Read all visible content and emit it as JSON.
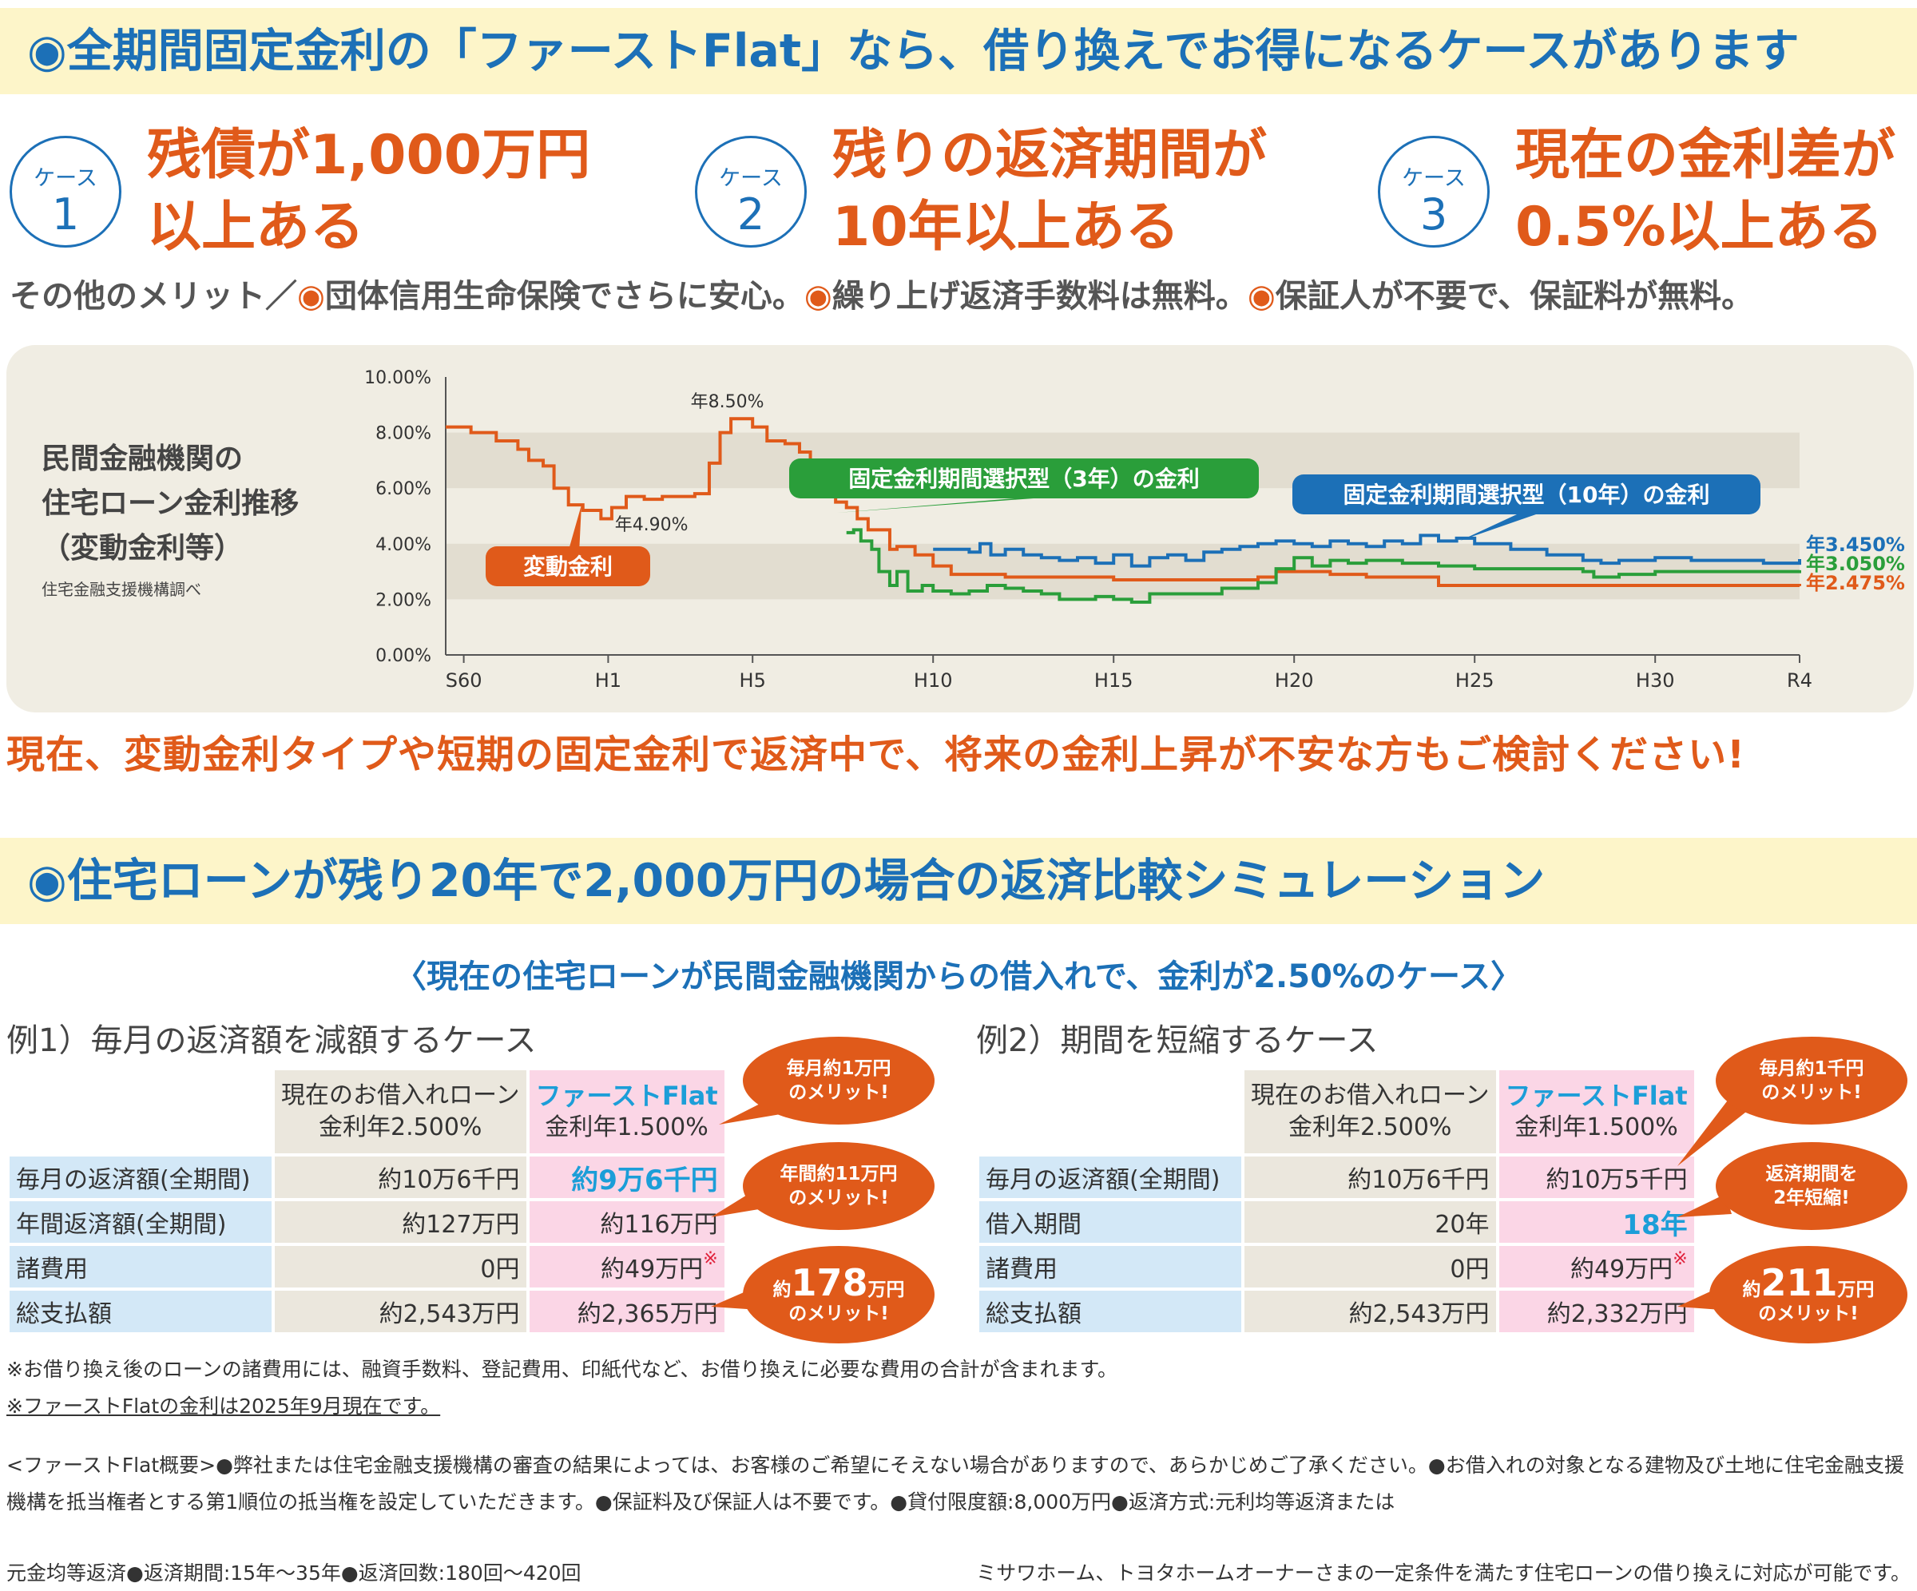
{
  "top_headline": "◉全期間固定金利の「ファーストFlat」なら、借り換えでお得になるケースがあります",
  "cases": [
    {
      "label": "ケース",
      "number": "1",
      "line1": "残債が1,000万円",
      "line2": "以上ある"
    },
    {
      "label": "ケース",
      "number": "2",
      "line1": "残りの返済期間が",
      "line2": "10年以上ある"
    },
    {
      "label": "ケース",
      "number": "3",
      "line1": "現在の金利差が",
      "line2": "0.5%以上ある"
    }
  ],
  "merits": {
    "prefix": "その他のメリット／",
    "dot": "◉",
    "items": [
      "団体信用生命保険でさらに安心。",
      "繰り上げ返済手数料は無料。",
      "保証人が不要で、保証料が無料。"
    ]
  },
  "chart_title_lines": [
    "民間金融機関の",
    "住宅ローン金利推移",
    "（変動金利等）"
  ],
  "chart_source": "住宅金融支援機構調べ",
  "chart_data": {
    "type": "line",
    "x_ticks": [
      "S60",
      "H1",
      "H5",
      "H10",
      "H15",
      "H20",
      "H25",
      "H30",
      "R4"
    ],
    "y_ticks": [
      "10.00%",
      "8.00%",
      "6.00%",
      "4.00%",
      "2.00%",
      "0.00%"
    ],
    "ylim": [
      0,
      10
    ],
    "xlim": [
      1984.5,
      2022
    ],
    "grid_bands": [
      [
        2,
        4
      ],
      [
        6,
        8
      ]
    ],
    "annotations": {
      "peak": "年8.50%",
      "trough": "年4.90%"
    },
    "series": [
      {
        "name": "変動金利",
        "color": "#e05a1a",
        "end_label": "年2.475%",
        "points": [
          [
            1984.5,
            8.2
          ],
          [
            1985.2,
            8.0
          ],
          [
            1985.9,
            7.7
          ],
          [
            1986.5,
            7.4
          ],
          [
            1986.8,
            7.0
          ],
          [
            1987.2,
            6.8
          ],
          [
            1987.5,
            6.0
          ],
          [
            1987.9,
            5.4
          ],
          [
            1988.3,
            5.2
          ],
          [
            1988.8,
            4.9
          ],
          [
            1989.1,
            5.3
          ],
          [
            1989.5,
            5.7
          ],
          [
            1990.0,
            5.6
          ],
          [
            1990.5,
            5.7
          ],
          [
            1991.0,
            5.7
          ],
          [
            1991.4,
            5.8
          ],
          [
            1991.8,
            6.9
          ],
          [
            1992.1,
            8.0
          ],
          [
            1992.4,
            8.5
          ],
          [
            1992.7,
            8.5
          ],
          [
            1993.0,
            8.2
          ],
          [
            1993.4,
            7.7
          ],
          [
            1993.9,
            7.6
          ],
          [
            1994.3,
            7.3
          ],
          [
            1994.6,
            6.4
          ],
          [
            1995.0,
            5.9
          ],
          [
            1995.3,
            5.5
          ],
          [
            1995.6,
            5.3
          ],
          [
            1995.9,
            4.9
          ],
          [
            1996.2,
            4.5
          ],
          [
            1996.8,
            3.8
          ],
          [
            1997.0,
            3.9
          ],
          [
            1997.5,
            3.6
          ],
          [
            1998.0,
            3.2
          ],
          [
            1998.5,
            2.9
          ],
          [
            2000.0,
            2.8
          ],
          [
            2003.0,
            2.7
          ],
          [
            2006.0,
            2.7
          ],
          [
            2006.5,
            2.7
          ],
          [
            2007.0,
            2.8
          ],
          [
            2007.5,
            3.0
          ],
          [
            2009.0,
            2.9
          ],
          [
            2010.0,
            2.8
          ],
          [
            2011.0,
            2.8
          ],
          [
            2012.0,
            2.5
          ],
          [
            2022.0,
            2.475
          ]
        ]
      },
      {
        "name": "固定金利期間選択型（3年）の金利",
        "color": "#2a9e3a",
        "end_label": "年3.050%",
        "points": [
          [
            1995.6,
            4.4
          ],
          [
            1995.8,
            4.5
          ],
          [
            1996.0,
            4.1
          ],
          [
            1996.3,
            3.8
          ],
          [
            1996.5,
            3.0
          ],
          [
            1996.8,
            2.5
          ],
          [
            1997.0,
            3.0
          ],
          [
            1997.3,
            2.3
          ],
          [
            1997.7,
            2.5
          ],
          [
            1998.0,
            2.3
          ],
          [
            1998.5,
            2.2
          ],
          [
            1999.0,
            2.3
          ],
          [
            1999.5,
            2.5
          ],
          [
            2000.0,
            2.4
          ],
          [
            2000.5,
            2.3
          ],
          [
            2001.0,
            2.2
          ],
          [
            2001.5,
            2.0
          ],
          [
            2002.0,
            2.0
          ],
          [
            2002.5,
            2.1
          ],
          [
            2003.0,
            2.0
          ],
          [
            2003.5,
            1.9
          ],
          [
            2004.0,
            2.2
          ],
          [
            2005.0,
            2.2
          ],
          [
            2006.0,
            2.4
          ],
          [
            2007.0,
            2.6
          ],
          [
            2007.5,
            3.1
          ],
          [
            2008.0,
            3.5
          ],
          [
            2008.5,
            3.2
          ],
          [
            2009.0,
            3.4
          ],
          [
            2009.5,
            3.3
          ],
          [
            2010.0,
            3.4
          ],
          [
            2011.0,
            3.3
          ],
          [
            2012.0,
            3.2
          ],
          [
            2013.0,
            3.1
          ],
          [
            2014.0,
            3.1
          ],
          [
            2015.0,
            3.1
          ],
          [
            2016.0,
            3.0
          ],
          [
            2016.3,
            2.8
          ],
          [
            2017.0,
            2.9
          ],
          [
            2018.0,
            3.0
          ],
          [
            2019.0,
            3.0
          ],
          [
            2020.0,
            3.0
          ],
          [
            2021.0,
            3.0
          ],
          [
            2022.0,
            3.05
          ]
        ]
      },
      {
        "name": "固定金利期間選択型（10年）の金利",
        "color": "#1c70b7",
        "end_label": "年3.450%",
        "points": [
          [
            1998.0,
            3.8
          ],
          [
            1998.5,
            3.8
          ],
          [
            1999.0,
            3.7
          ],
          [
            1999.3,
            4.0
          ],
          [
            1999.6,
            3.6
          ],
          [
            2000.0,
            3.8
          ],
          [
            2000.5,
            3.6
          ],
          [
            2001.0,
            3.5
          ],
          [
            2001.5,
            3.4
          ],
          [
            2002.0,
            3.5
          ],
          [
            2002.5,
            3.3
          ],
          [
            2003.0,
            3.6
          ],
          [
            2003.5,
            3.2
          ],
          [
            2004.0,
            3.5
          ],
          [
            2004.5,
            3.6
          ],
          [
            2005.0,
            3.4
          ],
          [
            2005.5,
            3.7
          ],
          [
            2006.0,
            3.8
          ],
          [
            2006.5,
            3.9
          ],
          [
            2007.0,
            4.0
          ],
          [
            2007.5,
            4.1
          ],
          [
            2008.0,
            4.0
          ],
          [
            2008.5,
            3.9
          ],
          [
            2009.0,
            4.1
          ],
          [
            2009.5,
            4.0
          ],
          [
            2010.0,
            3.9
          ],
          [
            2010.5,
            4.1
          ],
          [
            2011.0,
            4.0
          ],
          [
            2011.5,
            4.3
          ],
          [
            2012.0,
            4.1
          ],
          [
            2012.5,
            4.2
          ],
          [
            2013.0,
            4.0
          ],
          [
            2014.0,
            3.8
          ],
          [
            2015.0,
            3.6
          ],
          [
            2016.0,
            3.4
          ],
          [
            2016.5,
            3.3
          ],
          [
            2017.0,
            3.4
          ],
          [
            2018.0,
            3.5
          ],
          [
            2019.0,
            3.4
          ],
          [
            2020.0,
            3.4
          ],
          [
            2021.0,
            3.3
          ],
          [
            2022.0,
            3.45
          ]
        ]
      }
    ]
  },
  "appeal_text": "現在、変動金利タイプや短期の固定金利で返済中で、将来の金利上昇が不安な方もご検討ください!",
  "sim_headline": "◉住宅ローンが残り20年で2,000万円の場合の返済比較シミュレーション",
  "sim_subtitle": "〈現在の住宅ローンが民間金融機関からの借入れで、金利が2.50%のケース〉",
  "example1": {
    "title": "例1）毎月の返済額を減額するケース",
    "col_current_line1": "現在のお借入れローン",
    "col_current_line2": "金利年2.500%",
    "col_ff_line1": "ファーストFlat",
    "col_ff_line2": "金利年1.500%",
    "rows": [
      {
        "label": "毎月の返済額(全期間)",
        "current": "約10万6千円",
        "ff": "約9万6千円",
        "ff_mark": ""
      },
      {
        "label": "年間返済額(全期間)",
        "current": "約127万円",
        "ff": "約116万円",
        "ff_mark": ""
      },
      {
        "label": "諸費用",
        "current": "0円",
        "ff": "約49万円",
        "ff_mark": "※"
      },
      {
        "label": "総支払額",
        "current": "約2,543万円",
        "ff": "約2,365万円",
        "ff_mark": ""
      }
    ],
    "bubbles": [
      {
        "line1": "毎月約1万円",
        "line2": "のメリット!"
      },
      {
        "line1": "年間約11万円",
        "line2": "のメリット!"
      },
      {
        "pre": "約",
        "big": "178",
        "post": "万円",
        "line2": "のメリット!"
      }
    ]
  },
  "example2": {
    "title": "例2）期間を短縮するケース",
    "col_current_line1": "現在のお借入れローン",
    "col_current_line2": "金利年2.500%",
    "col_ff_line1": "ファーストFlat",
    "col_ff_line2": "金利年1.500%",
    "rows": [
      {
        "label": "毎月の返済額(全期間)",
        "current": "約10万6千円",
        "ff": "約10万5千円",
        "ff_mark": ""
      },
      {
        "label": "借入期間",
        "current": "20年",
        "ff": "18年",
        "ff_mark": ""
      },
      {
        "label": "諸費用",
        "current": "0円",
        "ff": "約49万円",
        "ff_mark": "※"
      },
      {
        "label": "総支払額",
        "current": "約2,543万円",
        "ff": "約2,332万円",
        "ff_mark": ""
      }
    ],
    "bubbles": [
      {
        "line1": "毎月約1千円",
        "line2": "のメリット!"
      },
      {
        "line1": "返済期間を",
        "line2": "2年短縮!"
      },
      {
        "pre": "約",
        "big": "211",
        "post": "万円",
        "line2": "のメリット!"
      }
    ]
  },
  "notes": [
    "※お借り換え後のローンの諸費用には、融資手数料、登記費用、印紙代など、お借り換えに必要な費用の合計が含まれます。",
    "※ファーストFlatの金利は2025年9月現在です。"
  ],
  "footer": {
    "text": "<ファーストFlat概要>●弊社または住宅金融支援機構の審査の結果によっては、お客様のご希望にそえない場合がありますので、あらかじめご了承ください。●お借入れの対象となる建物及び土地に住宅金融支援機構を抵当権者とする第1順位の抵当権を設定していただきます。●保証料及び保証人は不要です。●貸付限度額:8,000万円●返済方式:元利均等返済または",
    "line3_left": "元金均等返済●返済期間:15年〜35年●返済回数:180回〜420回",
    "line3_right": "ミサワホーム、トヨタホームオーナーさまの一定条件を満たす住宅ローンの借り換えに対応が可能です。"
  },
  "colors": {
    "blue": "#1c70b7",
    "orange": "#e05a1a",
    "green": "#2a9e3a",
    "yellow_band": "#fdf5c9",
    "panel": "#f0ede3"
  }
}
